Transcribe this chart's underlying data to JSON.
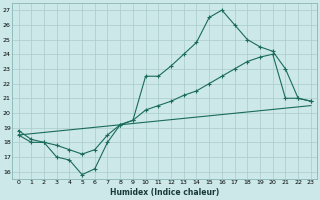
{
  "xlabel": "Humidex (Indice chaleur)",
  "bg_color": "#cce8e8",
  "grid_color": "#aacccc",
  "line_color": "#1a6b5a",
  "xlim": [
    -0.5,
    23.5
  ],
  "ylim": [
    15.5,
    27.5
  ],
  "xticks": [
    0,
    1,
    2,
    3,
    4,
    5,
    6,
    7,
    8,
    9,
    10,
    11,
    12,
    13,
    14,
    15,
    16,
    17,
    18,
    19,
    20,
    21,
    22,
    23
  ],
  "yticks": [
    16,
    17,
    18,
    19,
    20,
    21,
    22,
    23,
    24,
    25,
    26,
    27
  ],
  "line1_x": [
    0,
    1,
    2,
    3,
    4,
    5,
    6,
    7,
    8,
    9,
    10,
    11,
    12,
    13,
    14,
    15,
    16,
    17,
    18,
    19,
    20,
    21,
    22,
    23
  ],
  "line1_y": [
    18.5,
    18.0,
    18.0,
    17.0,
    16.8,
    15.8,
    16.2,
    18.0,
    19.2,
    19.5,
    22.5,
    22.5,
    23.2,
    24.0,
    24.8,
    26.5,
    27.0,
    26.0,
    25.0,
    24.5,
    24.2,
    23.0,
    21.0,
    20.8
  ],
  "line2_x": [
    0,
    1,
    2,
    3,
    4,
    5,
    6,
    7,
    8,
    9,
    10,
    11,
    12,
    13,
    14,
    15,
    16,
    17,
    18,
    19,
    20,
    21,
    22,
    23
  ],
  "line2_y": [
    18.8,
    18.2,
    18.0,
    17.8,
    17.5,
    17.2,
    17.5,
    18.5,
    19.2,
    19.5,
    20.2,
    20.5,
    20.8,
    21.2,
    21.5,
    22.0,
    22.5,
    23.0,
    23.5,
    23.8,
    24.0,
    21.0,
    21.0,
    20.8
  ],
  "line3_x": [
    0,
    23
  ],
  "line3_y": [
    18.5,
    20.5
  ]
}
